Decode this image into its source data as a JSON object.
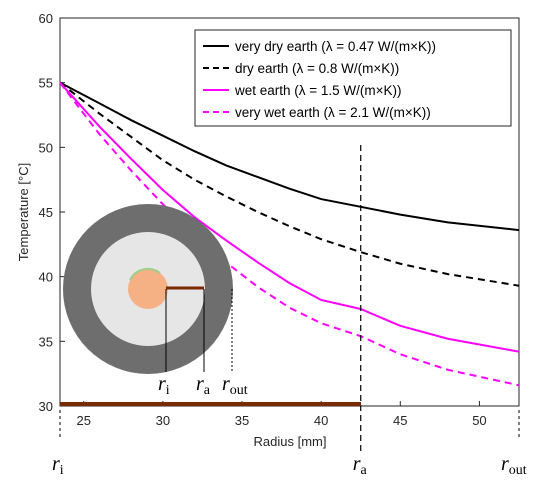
{
  "chart_data": {
    "type": "line",
    "xlabel": "Radius [mm]",
    "ylabel": "Temperature [°C]",
    "xlim": [
      23.5,
      52.5
    ],
    "ylim": [
      30,
      60
    ],
    "xticks": [
      25,
      30,
      35,
      40,
      45,
      50
    ],
    "yticks": [
      30,
      35,
      40,
      45,
      50,
      55,
      60
    ],
    "grid": false,
    "legend_position": "top-right",
    "series": [
      {
        "name": "very dry earth (λ = 0.47 W/(m×K))",
        "color": "#000000",
        "dash": "solid",
        "x": [
          23.5,
          26,
          28,
          30,
          32,
          34,
          36,
          38,
          40,
          42.5,
          45,
          48,
          52.5
        ],
        "y": [
          55.0,
          53.4,
          52.1,
          50.9,
          49.7,
          48.6,
          47.7,
          46.8,
          46.0,
          45.4,
          44.8,
          44.2,
          43.6
        ]
      },
      {
        "name": "dry earth (λ = 0.8 W/(m×K))",
        "color": "#000000",
        "dash": "dashed",
        "x": [
          23.5,
          26,
          28,
          30,
          32,
          34,
          36,
          38,
          40,
          42.5,
          45,
          48,
          52.5
        ],
        "y": [
          55.0,
          52.6,
          50.8,
          49.0,
          47.5,
          46.2,
          45.0,
          43.9,
          42.9,
          41.9,
          41.0,
          40.2,
          39.3
        ]
      },
      {
        "name": "wet earth (λ = 1.5 W/(m×K))",
        "color": "#ff00ff",
        "dash": "solid",
        "x": [
          23.5,
          26,
          28,
          30,
          32,
          34,
          36,
          38,
          40,
          42.5,
          45,
          48,
          52.5
        ],
        "y": [
          55.0,
          51.6,
          49.1,
          46.7,
          44.6,
          42.8,
          41.1,
          39.5,
          38.2,
          37.5,
          36.2,
          35.2,
          34.2
        ]
      },
      {
        "name": "very wet earth (λ = 2.1 W/(m×K))",
        "color": "#ff00ff",
        "dash": "dashed",
        "x": [
          23.5,
          26,
          28,
          30,
          32,
          34,
          36,
          38,
          40,
          42.5,
          45,
          48,
          52.5
        ],
        "y": [
          55.0,
          51.0,
          48.2,
          45.6,
          43.2,
          41.1,
          39.2,
          37.6,
          36.4,
          35.4,
          34.0,
          32.8,
          31.6
        ]
      }
    ],
    "vertical_markers": [
      {
        "x": 23.5,
        "label": "r",
        "sub": "i"
      },
      {
        "x": 42.5,
        "label": "r",
        "sub": "a"
      },
      {
        "x": 52.5,
        "label": "r",
        "sub": "out"
      }
    ],
    "inset_labels": [
      {
        "label": "r",
        "sub": "i"
      },
      {
        "label": "r",
        "sub": "a"
      },
      {
        "label": "r",
        "sub": "out"
      }
    ],
    "colors": {
      "outer_ring": "#6e6e6e",
      "inner_disk": "#e6e6e6",
      "core": "#f5b183",
      "cable": "#7a2a00",
      "axis_text": "#262626"
    }
  }
}
